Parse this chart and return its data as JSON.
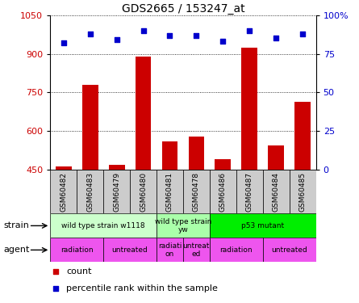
{
  "title": "GDS2665 / 153247_at",
  "samples": [
    "GSM60482",
    "GSM60483",
    "GSM60479",
    "GSM60480",
    "GSM60481",
    "GSM60478",
    "GSM60486",
    "GSM60487",
    "GSM60484",
    "GSM60485"
  ],
  "counts": [
    462,
    780,
    468,
    890,
    560,
    580,
    490,
    925,
    545,
    715
  ],
  "percentile": [
    82,
    88,
    84,
    90,
    87,
    87,
    83,
    90,
    85,
    88
  ],
  "ylim_left": [
    450,
    1050
  ],
  "ylim_right": [
    0,
    100
  ],
  "yticks_left": [
    450,
    600,
    750,
    900,
    1050
  ],
  "yticks_right": [
    0,
    25,
    50,
    75,
    100
  ],
  "ytick_labels_right": [
    "0",
    "25",
    "50",
    "75",
    "100%"
  ],
  "bar_color": "#cc0000",
  "dot_color": "#0000cc",
  "grid_color": "#000000",
  "strain_data": [
    {
      "label": "wild type strain w1118",
      "start": 0,
      "end": 4,
      "color": "#ccffcc"
    },
    {
      "label": "wild type strain\nyw",
      "start": 4,
      "end": 6,
      "color": "#aaffaa"
    },
    {
      "label": "p53 mutant",
      "start": 6,
      "end": 10,
      "color": "#00ee00"
    }
  ],
  "agent_data": [
    {
      "label": "radiation",
      "start": 0,
      "end": 2,
      "color": "#ee55ee"
    },
    {
      "label": "untreated",
      "start": 2,
      "end": 4,
      "color": "#ee55ee"
    },
    {
      "label": "radiati\non",
      "start": 4,
      "end": 5,
      "color": "#ee55ee"
    },
    {
      "label": "untreat\ned",
      "start": 5,
      "end": 6,
      "color": "#ee55ee"
    },
    {
      "label": "radiation",
      "start": 6,
      "end": 8,
      "color": "#ee55ee"
    },
    {
      "label": "untreated",
      "start": 8,
      "end": 10,
      "color": "#ee55ee"
    }
  ],
  "legend_count_color": "#cc0000",
  "legend_pct_color": "#0000cc",
  "legend_count_label": "count",
  "legend_pct_label": "percentile rank within the sample",
  "left_axis_color": "#cc0000",
  "right_axis_color": "#0000cc",
  "annotation_strain": "strain",
  "annotation_agent": "agent",
  "sample_box_color": "#cccccc",
  "bg_color": "#ffffff"
}
